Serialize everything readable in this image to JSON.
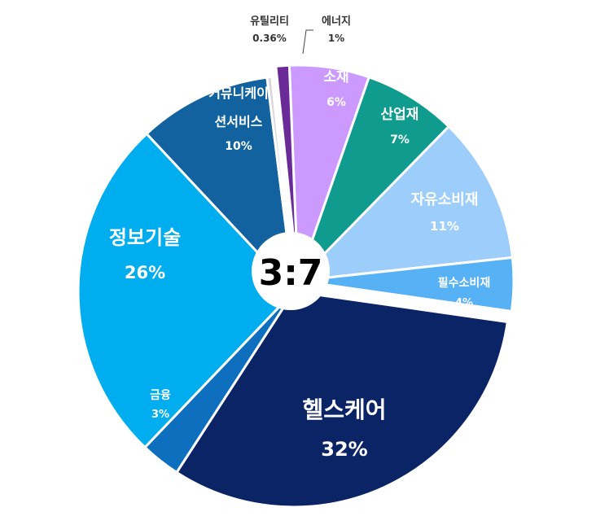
{
  "chart_data": {
    "type": "pie",
    "center_label": "3:7",
    "slices": [
      {
        "label": "소재",
        "value": 6,
        "value_text": "6%",
        "color": "#cc99ff",
        "text_color": "#ffffff"
      },
      {
        "label": "산업재",
        "value": 7,
        "value_text": "7%",
        "color": "#0f9b8e",
        "text_color": "#ffffff"
      },
      {
        "label": "자유소비재",
        "value": 11,
        "value_text": "11%",
        "color": "#9ccdfb",
        "text_color": "#ffffff"
      },
      {
        "label": "필수소비재",
        "value": 4,
        "value_text": "4%",
        "color": "#57b2f5",
        "text_color": "#ffffff"
      },
      {
        "label": "헬스케어",
        "value": 32,
        "value_text": "32%",
        "color": "#0b2466",
        "text_color": "#ffffff"
      },
      {
        "label": "금융",
        "value": 3,
        "value_text": "3%",
        "color": "#0f6fbf",
        "text_color": "#ffffff"
      },
      {
        "label": "정보기술",
        "value": 26,
        "value_text": "26%",
        "color": "#00aeef",
        "text_color": "#ffffff"
      },
      {
        "label": "커뮤니케이 션서비스",
        "value": 10,
        "value_text": "10%",
        "color": "#11629e",
        "text_color": "#ffffff"
      },
      {
        "label": "유틸리티",
        "value": 0.36,
        "value_text": "0.36%",
        "color": "#d8d8d8",
        "text_color": "#333333"
      },
      {
        "label": "에너지",
        "value": 1,
        "value_text": "1%",
        "color": "#6a2a97",
        "text_color": "#333333"
      }
    ],
    "exploded": [
      "헬스케어",
      "금융",
      "정보기술",
      "커뮤니케이 션서비스",
      "유틸리티"
    ]
  }
}
